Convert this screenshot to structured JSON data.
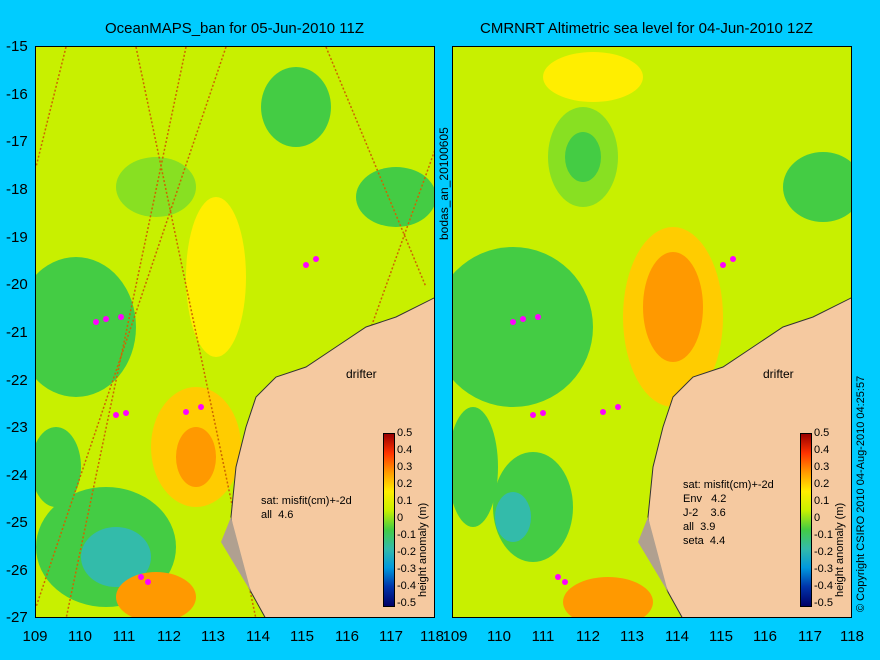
{
  "left_panel": {
    "title": "OceanMAPS_ban for 05-Jun-2010 11Z",
    "drifter_label": "drifter",
    "stats": [
      "sat: misfit(cm)+-2d",
      "all  4.6"
    ]
  },
  "right_panel": {
    "title": "CMRNRT Altimetric sea level  for 04-Jun-2010 12Z",
    "drifter_label": "drifter",
    "stats": [
      "sat: misfit(cm)+-2d",
      "Env   4.2",
      "J-2    3.6",
      "all  3.9",
      "seta  4.4"
    ]
  },
  "axes": {
    "lat_ticks": [
      "-15",
      "-16",
      "-17",
      "-18",
      "-19",
      "-20",
      "-21",
      "-22",
      "-23",
      "-24",
      "-25",
      "-26",
      "-27"
    ],
    "lon_ticks": [
      "109",
      "110",
      "111",
      "112",
      "113",
      "114",
      "115",
      "116",
      "117",
      "118"
    ],
    "lat_range": [
      -27,
      -15
    ],
    "lon_range": [
      109,
      118
    ]
  },
  "colorbar": {
    "label": "height anomaly (m)",
    "ticks": [
      "0.5",
      "0.4",
      "0.3",
      "0.2",
      "0.1",
      "0",
      "-0.1",
      "-0.2",
      "-0.3",
      "-0.4",
      "-0.5"
    ],
    "range": [
      -0.5,
      0.5
    ]
  },
  "side_text": {
    "analysis_id": "bodas_an_20100605",
    "copyright": "© Copyright CSIRO 2010   04-Aug-2010 04:25:57"
  },
  "colors": {
    "background": "#00ccff",
    "land": "#f5c9a0",
    "field_base": "#c8f000"
  }
}
